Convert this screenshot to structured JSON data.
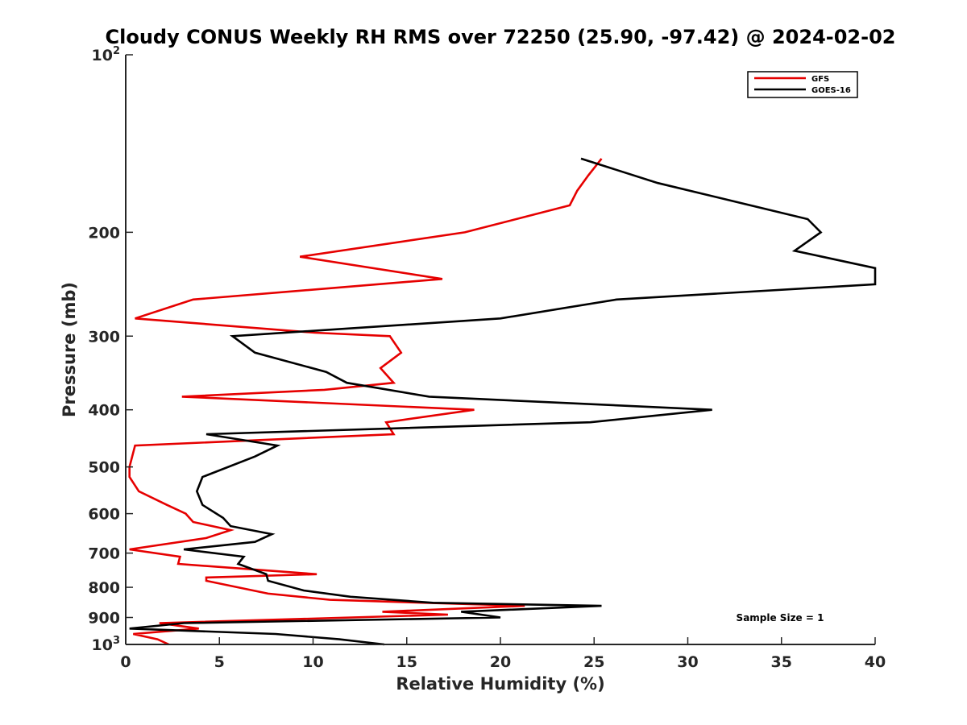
{
  "chart_data": {
    "type": "line",
    "title": "Cloudy CONUS Weekly RH RMS over 72250 (25.90, -97.42) @ 2024-02-02",
    "xlabel": "Relative Humidity (%)",
    "ylabel": "Pressure (mb)",
    "xlim": [
      0,
      40
    ],
    "ylim": [
      100,
      1000
    ],
    "y_scale": "log",
    "y_reversed": true,
    "x_ticks": [
      0,
      5,
      10,
      15,
      20,
      25,
      30,
      35,
      40
    ],
    "x_tick_labels": [
      "0",
      "5",
      "10",
      "15",
      "20",
      "25",
      "30",
      "35",
      "40"
    ],
    "y_ticks": [
      100,
      200,
      300,
      400,
      500,
      600,
      700,
      800,
      900,
      1000
    ],
    "y_tick_labels": [
      {
        "base": "10",
        "exp": "2"
      },
      {
        "text": "200"
      },
      {
        "text": "300"
      },
      {
        "text": "400"
      },
      {
        "text": "500"
      },
      {
        "text": "600"
      },
      {
        "text": "700"
      },
      {
        "text": "800"
      },
      {
        "text": "900"
      },
      {
        "base": "10",
        "exp": "3"
      }
    ],
    "legend_position": "top-right",
    "grid": false,
    "annotation": "Sample Size = 1",
    "series": [
      {
        "name": "GFS",
        "color": "#e60000",
        "points": [
          [
            25.4,
            150
          ],
          [
            24.7,
            160
          ],
          [
            24.1,
            170
          ],
          [
            23.7,
            180
          ],
          [
            18.1,
            200
          ],
          [
            9.3,
            220
          ],
          [
            16.9,
            240
          ],
          [
            3.6,
            260
          ],
          [
            0.5,
            280
          ],
          [
            10.1,
            296
          ],
          [
            14.1,
            300
          ],
          [
            14.7,
            320
          ],
          [
            13.6,
            340
          ],
          [
            14.3,
            360
          ],
          [
            10.6,
            370
          ],
          [
            3.0,
            380
          ],
          [
            18.6,
            400
          ],
          [
            13.9,
            420
          ],
          [
            14.3,
            440
          ],
          [
            0.5,
            460
          ],
          [
            0.2,
            500
          ],
          [
            0.2,
            520
          ],
          [
            0.7,
            550
          ],
          [
            2.2,
            580
          ],
          [
            3.2,
            600
          ],
          [
            3.6,
            620
          ],
          [
            5.6,
            640
          ],
          [
            4.3,
            660
          ],
          [
            0.2,
            690
          ],
          [
            2.9,
            710
          ],
          [
            2.8,
            730
          ],
          [
            10.2,
            760
          ],
          [
            4.3,
            770
          ],
          [
            4.3,
            780
          ],
          [
            7.6,
            820
          ],
          [
            10.9,
            840
          ],
          [
            21.3,
            860
          ],
          [
            13.7,
            880
          ],
          [
            17.2,
            890
          ],
          [
            1.8,
            920
          ],
          [
            3.9,
            940
          ],
          [
            0.4,
            960
          ],
          [
            1.7,
            980
          ],
          [
            2.3,
            1000
          ]
        ]
      },
      {
        "name": "GOES-16",
        "color": "#000000",
        "points": [
          [
            24.3,
            150
          ],
          [
            28.4,
            165
          ],
          [
            36.4,
            190
          ],
          [
            37.1,
            200
          ],
          [
            35.7,
            215
          ],
          [
            40.0,
            230
          ],
          [
            40.0,
            245
          ],
          [
            26.2,
            260
          ],
          [
            20.0,
            280
          ],
          [
            5.7,
            300
          ],
          [
            6.9,
            320
          ],
          [
            10.7,
            345
          ],
          [
            11.8,
            360
          ],
          [
            16.2,
            380
          ],
          [
            31.3,
            400
          ],
          [
            24.8,
            420
          ],
          [
            4.3,
            440
          ],
          [
            8.1,
            460
          ],
          [
            6.9,
            480
          ],
          [
            4.1,
            520
          ],
          [
            3.8,
            550
          ],
          [
            4.1,
            580
          ],
          [
            5.2,
            610
          ],
          [
            5.6,
            630
          ],
          [
            7.8,
            650
          ],
          [
            6.9,
            670
          ],
          [
            3.1,
            690
          ],
          [
            6.3,
            710
          ],
          [
            6.0,
            730
          ],
          [
            7.5,
            760
          ],
          [
            7.6,
            780
          ],
          [
            9.5,
            810
          ],
          [
            12.0,
            830
          ],
          [
            16.4,
            850
          ],
          [
            25.4,
            860
          ],
          [
            17.9,
            880
          ],
          [
            20.0,
            900
          ],
          [
            3.1,
            920
          ],
          [
            0.2,
            940
          ],
          [
            8.0,
            960
          ],
          [
            11.4,
            980
          ],
          [
            13.8,
            1000
          ]
        ]
      }
    ]
  }
}
